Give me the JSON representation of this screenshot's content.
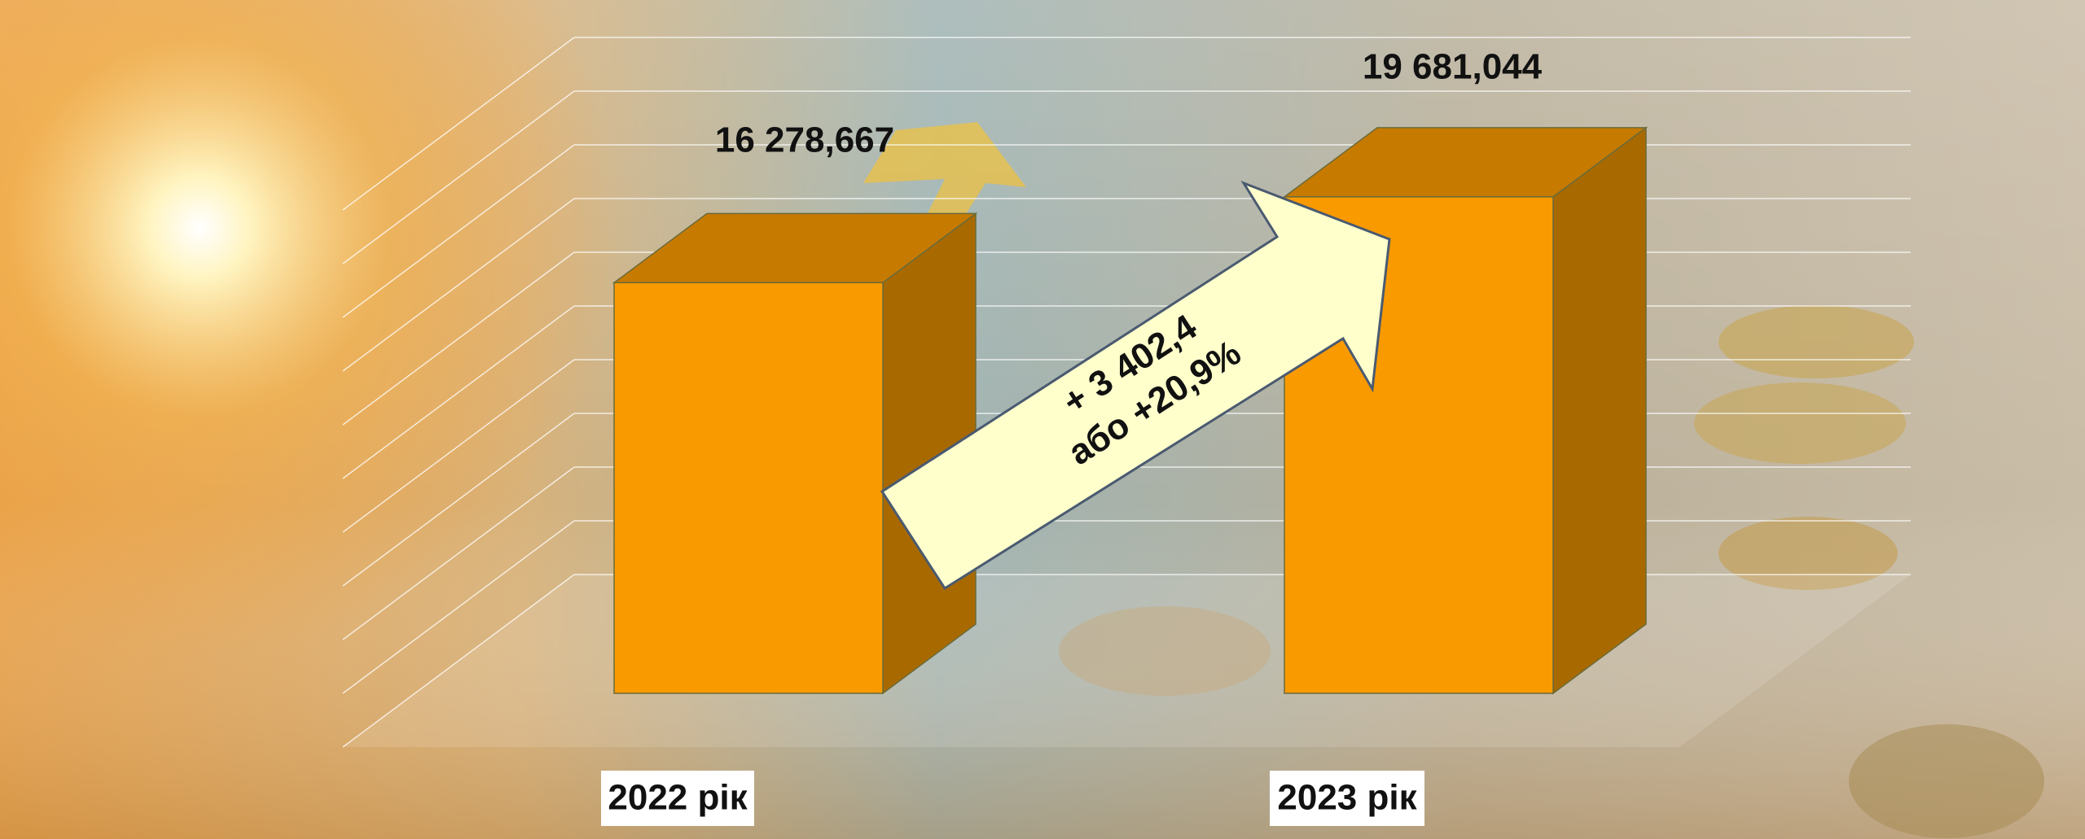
{
  "chart_data": {
    "type": "bar3d",
    "categories": [
      "2022 рік",
      "2023 рік"
    ],
    "values": [
      16278.667,
      19681.044
    ],
    "value_labels": [
      "16 278,667",
      "19 681,044"
    ],
    "annotations": [
      "+ 3 402,4",
      "або +20,9%"
    ],
    "ylim": [
      0,
      24000
    ],
    "color": "#f99a00",
    "grid": true
  }
}
